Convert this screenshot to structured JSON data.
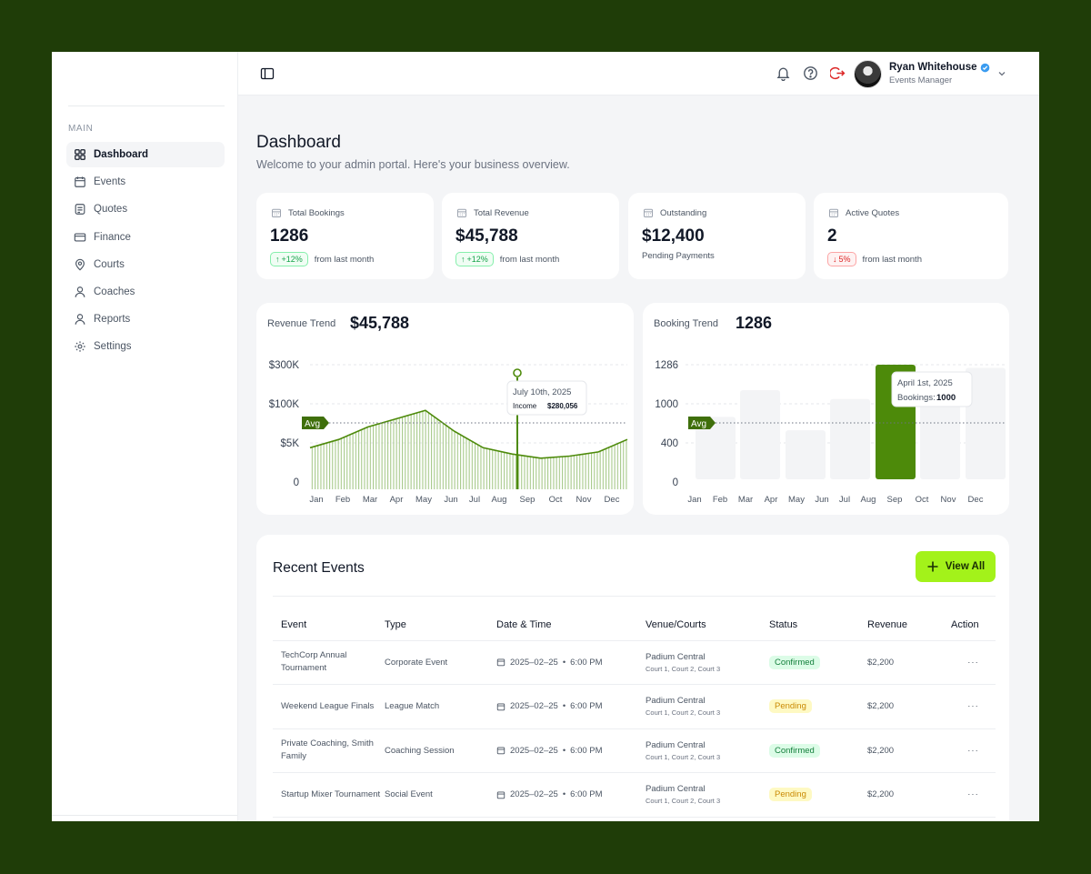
{
  "sidebar": {
    "section": "MAIN",
    "items": [
      {
        "label": "Dashboard",
        "icon": "grid-icon"
      },
      {
        "label": "Events",
        "icon": "calendar-icon"
      },
      {
        "label": "Quotes",
        "icon": "document-icon"
      },
      {
        "label": "Finance",
        "icon": "card-icon"
      },
      {
        "label": "Courts",
        "icon": "location-icon"
      },
      {
        "label": "Coaches",
        "icon": "user-icon"
      },
      {
        "label": "Reports",
        "icon": "chart-icon"
      },
      {
        "label": "Settings",
        "icon": "gear-icon"
      }
    ]
  },
  "header": {
    "user_name": "Ryan Whitehouse",
    "user_role": "Events Manager"
  },
  "page": {
    "title": "Dashboard",
    "subtitle": "Welcome to your admin portal. Here's your business overview."
  },
  "stats": [
    {
      "label": "Total Bookings",
      "value": "1286",
      "change": "+12%",
      "foot": "from last month"
    },
    {
      "label": "Total Revenue",
      "value": "$45,788",
      "change": "+12%",
      "foot": "from last month"
    },
    {
      "label": "Outstanding",
      "value": "$12,400",
      "foot": "Pending Payments"
    },
    {
      "label": "Active Quotes",
      "value": "2",
      "change": "5%",
      "foot": "from last month"
    }
  ],
  "revenue_card": {
    "label": "Revenue Trend",
    "value": "$45,788"
  },
  "booking_card": {
    "label": "Booking Trend",
    "value": "1286"
  },
  "chart_data": [
    {
      "type": "area",
      "title": "Revenue Trend",
      "categories": [
        "Jan",
        "Feb",
        "Mar",
        "Apr",
        "May",
        "Jun",
        "Jul",
        "Aug",
        "Sep",
        "Oct",
        "Nov",
        "Dec"
      ],
      "y_ticks": [
        "$300K",
        "$100K",
        "$5K",
        "0"
      ],
      "values": [
        100,
        120,
        150,
        170,
        190,
        140,
        100,
        85,
        75,
        80,
        90,
        120
      ],
      "avg_label": "Avg",
      "tooltip": {
        "date": "July 10th, 2025",
        "label": "Income",
        "value": "$280,056"
      }
    },
    {
      "type": "bar",
      "title": "Booking Trend",
      "categories": [
        "Jan",
        "Feb",
        "Mar",
        "Apr",
        "May",
        "Jun",
        "Jul",
        "Aug",
        "Sep",
        "Oct",
        "Nov",
        "Dec"
      ],
      "y_ticks": [
        "1286",
        "1000",
        "400",
        "0"
      ],
      "values": [
        700,
        700,
        1000,
        1000,
        550,
        550,
        900,
        900,
        1100,
        1100,
        1250,
        1250
      ],
      "highlight": "Sep",
      "avg_label": "Avg",
      "tooltip": {
        "date": "April 1st, 2025",
        "label": "Bookings:",
        "value": "1000"
      }
    }
  ],
  "events": {
    "title": "Recent Events",
    "view_all": "View All",
    "columns": [
      "Event",
      "Type",
      "Date & Time",
      "Venue/Courts",
      "Status",
      "Revenue",
      "Action"
    ],
    "rows": [
      {
        "name": "TechCorp Annual Tournament",
        "type": "Corporate Event",
        "date": "2025–02–25",
        "time": "6:00 PM",
        "venue": "Padium Central",
        "courts": "Court 1, Court 2, Court 3",
        "status": "Confirmed",
        "revenue": "$2,200"
      },
      {
        "name": "Weekend League Finals",
        "type": "League Match",
        "date": "2025–02–25",
        "time": "6:00 PM",
        "venue": "Padium Central",
        "courts": "Court 1, Court 2, Court 3",
        "status": "Pending",
        "revenue": "$2,200"
      },
      {
        "name": "Private Coaching, Smith Family",
        "type": "Coaching Session",
        "date": "2025–02–25",
        "time": "6:00 PM",
        "venue": "Padium Central",
        "courts": "Court 1, Court 2, Court 3",
        "status": "Confirmed",
        "revenue": "$2,200"
      },
      {
        "name": "Startup Mixer Tournament",
        "type": "Social Event",
        "date": "2025–02–25",
        "time": "6:00 PM",
        "venue": "Padium Central",
        "courts": "Court 1, Court 2, Court 3",
        "status": "Pending",
        "revenue": "$2,200"
      }
    ]
  },
  "colors": {
    "accent": "#a3f21a",
    "brand_green": "#4d8a0a",
    "frame": "#1f3d08"
  }
}
